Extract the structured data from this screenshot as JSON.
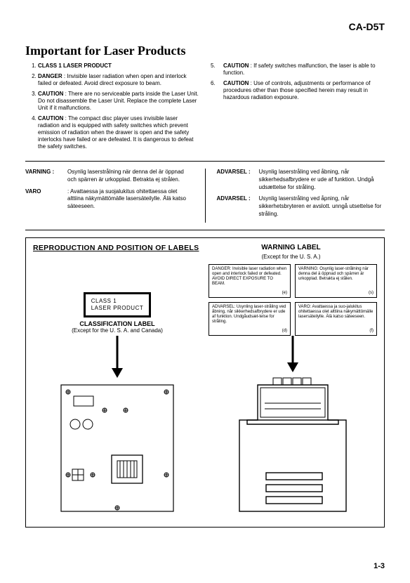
{
  "model": "CA-D5T",
  "title": "Important for Laser Products",
  "warnings_left": [
    {
      "lead": "CLASS 1 LASER PRODUCT",
      "body": ""
    },
    {
      "lead": "DANGER",
      "body": "Invisible laser radiation when open and interlock failed or defeated. Avoid direct exposure to beam."
    },
    {
      "lead": "CAUTION",
      "body": "There are no serviceable parts inside the Laser Unit. Do not disassemble the Laser Unit. Replace the complete Laser Unit if it malfunctions."
    },
    {
      "lead": "CAUTION",
      "body": "The compact disc player uses invisible laser radiation and is equipped with safety switches which prevent emission of radiation when the drawer is open and the safety interlocks have failed or are defeated. It is dangerous to defeat the safety switches."
    }
  ],
  "warnings_right": [
    {
      "n": "5.",
      "lead": "CAUTION",
      "body": "If safety switches malfunction, the laser is able to function."
    },
    {
      "n": "6.",
      "lead": "CAUTION",
      "body": "Use of controls, adjustments or performance of procedures other than those specified herein may result in hazardous radiation exposure."
    }
  ],
  "lang_left": [
    {
      "lbl": "VARNING :",
      "txt": "Osynlig laserstrålning när denna del är öppnad och spärren är urkopplad. Betrakta ej strålen."
    },
    {
      "lbl": "VARO",
      "txt": ": Avattaessa ja suojalukitus ohitettaessa olet alttiina näkymättömälle lasersäteilylle. Älä katso säteeseen."
    }
  ],
  "lang_right": [
    {
      "lbl": "ADVARSEL :",
      "txt": "Usynlig laserstråling ved åbning, når sikkerhedsafbrydere er ude af funktion. Undgå udsættelse for stråling."
    },
    {
      "lbl": "ADVARSEL :",
      "txt": "Usynlig laserstråling ved åpning, når sikkerhetsbryteren er avslott. unngå utsettelse for stråling."
    }
  ],
  "repro": {
    "heading": "REPRODUCTION AND POSITION OF LABELS",
    "warning_title": "WARNING LABEL",
    "warning_sub": "(Except for the U. S. A.)",
    "class_line1": "CLASS    1",
    "class_line2": "LASER    PRODUCT",
    "class_cap": "CLASSIFICATION LABEL",
    "class_sub": "(Except for the U. S. A. and Canada)",
    "mini": [
      {
        "txt": "DANGER:   Invisible laser radiation when open and interlock failed or defeated. AVOID DIRECT EXPOSURE TO BEAM.",
        "corner": "(e)"
      },
      {
        "txt": "VARNING:  Osynlig laser-strålning när denna del ä öppnad och spärren är urkopplad. Betrakta ej stålen.",
        "corner": "(s)"
      },
      {
        "txt": "ADVARSEL: Usynling laser-stråling ved åbning, når sikkerhedsafbrydere er ude af funktion. Undgåudsæt-telse for stråling.",
        "corner": "(d)"
      },
      {
        "txt": "VARO:    Avattaessa ja suo-jalukitus ohitettaessa olet alttiina näkymättömälle lasersäteilylle. Älä katso säteeseen.",
        "corner": "(f)"
      }
    ]
  },
  "page": "1-3"
}
